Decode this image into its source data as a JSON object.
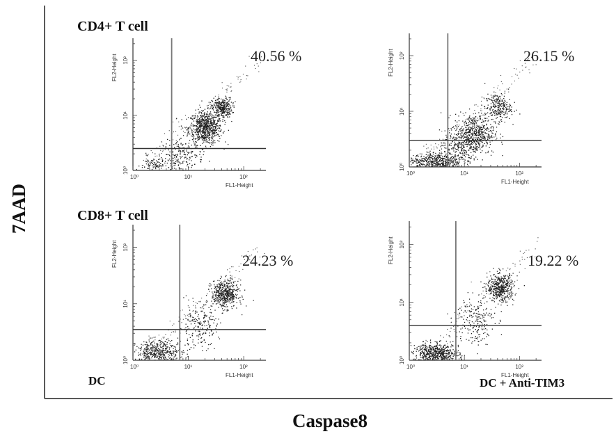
{
  "figure": {
    "y_axis_label": "7AAD",
    "x_axis_label": "Caspase8",
    "row_labels": [
      "CD4+ T cell",
      "CD8+ T cell"
    ],
    "column_labels": [
      "DC",
      "DC + Anti-TIM3"
    ]
  },
  "chart_data": [
    {
      "type": "scatter",
      "panel": "CD4+ T cell / DC",
      "xlabel": "FL1-Height",
      "ylabel": "FL2-Height",
      "x_ticks": [
        "10⁰",
        "10¹",
        "10²"
      ],
      "y_ticks": [
        "10⁰",
        "10¹",
        "10²"
      ],
      "log_scale": true,
      "x_gate": 5,
      "y_gate": 2.5,
      "annotation": "40.56 %",
      "upper_right_percent": 40.56,
      "clusters": [
        {
          "x": 20,
          "y": 6,
          "spread_x": 0.25,
          "spread_y": 0.25,
          "n": 700
        },
        {
          "x": 40,
          "y": 14,
          "spread_x": 0.15,
          "spread_y": 0.15,
          "n": 300
        },
        {
          "x": 8,
          "y": 2,
          "spread_x": 0.3,
          "spread_y": 0.2,
          "n": 150
        },
        {
          "x": 3,
          "y": 1.3,
          "spread_x": 0.35,
          "spread_y": 0.12,
          "n": 120
        }
      ]
    },
    {
      "type": "scatter",
      "panel": "CD4+ T cell / DC + Anti-TIM3",
      "xlabel": "FL1-Height",
      "ylabel": "FL2-Height",
      "x_ticks": [
        "10⁰",
        "10¹",
        "10²"
      ],
      "y_ticks": [
        "10⁰",
        "10¹",
        "10²"
      ],
      "log_scale": true,
      "x_gate": 5,
      "y_gate": 3,
      "annotation": "26.15 %",
      "upper_right_percent": 26.15,
      "clusters": [
        {
          "x": 15,
          "y": 4,
          "spread_x": 0.3,
          "spread_y": 0.3,
          "n": 550
        },
        {
          "x": 40,
          "y": 12,
          "spread_x": 0.2,
          "spread_y": 0.2,
          "n": 250
        },
        {
          "x": 3,
          "y": 1.3,
          "spread_x": 0.4,
          "spread_y": 0.12,
          "n": 450
        },
        {
          "x": 8,
          "y": 2.2,
          "spread_x": 0.3,
          "spread_y": 0.25,
          "n": 200
        }
      ]
    },
    {
      "type": "scatter",
      "panel": "CD8+ T cell / DC",
      "xlabel": "FL1-Height",
      "ylabel": "FL2-Height",
      "x_ticks": [
        "10⁰",
        "10¹",
        "10²"
      ],
      "y_ticks": [
        "10⁰",
        "10¹",
        "10²"
      ],
      "log_scale": true,
      "x_gate": 7,
      "y_gate": 3.5,
      "annotation": "24.23 %",
      "upper_right_percent": 24.23,
      "clusters": [
        {
          "x": 45,
          "y": 15,
          "spread_x": 0.2,
          "spread_y": 0.2,
          "n": 500
        },
        {
          "x": 3,
          "y": 1.4,
          "spread_x": 0.35,
          "spread_y": 0.18,
          "n": 450
        },
        {
          "x": 15,
          "y": 4,
          "spread_x": 0.3,
          "spread_y": 0.3,
          "n": 200
        }
      ]
    },
    {
      "type": "scatter",
      "panel": "CD8+ T cell / DC + Anti-TIM3",
      "xlabel": "FL1-Height",
      "ylabel": "FL2-Height",
      "x_ticks": [
        "10⁰",
        "10¹",
        "10²"
      ],
      "y_ticks": [
        "10⁰",
        "10¹",
        "10²"
      ],
      "log_scale": true,
      "x_gate": 7,
      "y_gate": 4,
      "annotation": "19.22 %",
      "upper_right_percent": 19.22,
      "clusters": [
        {
          "x": 45,
          "y": 18,
          "spread_x": 0.2,
          "spread_y": 0.2,
          "n": 450
        },
        {
          "x": 3,
          "y": 1.3,
          "spread_x": 0.35,
          "spread_y": 0.15,
          "n": 600
        },
        {
          "x": 15,
          "y": 5,
          "spread_x": 0.3,
          "spread_y": 0.35,
          "n": 200
        }
      ]
    }
  ]
}
